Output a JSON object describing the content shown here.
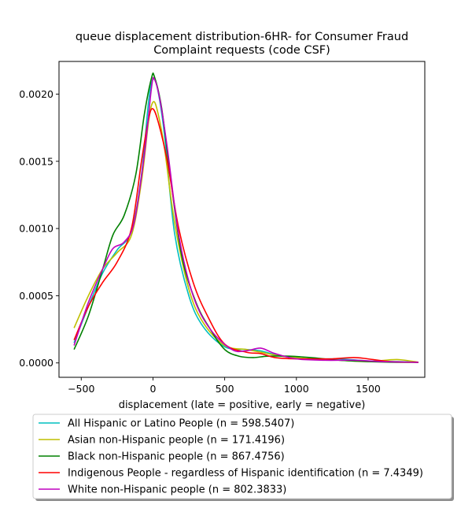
{
  "chart_data": {
    "type": "line",
    "title": "queue displacement distribution-6HR-  for Consumer Fraud\nComplaint  requests (code CSF)",
    "xlabel": "displacement (late = positive, early = negative)",
    "ylabel": "",
    "xlim": [
      -655,
      1895
    ],
    "ylim": [
      -0.000107,
      0.002243
    ],
    "x_ticks": [
      -500,
      0,
      500,
      1000,
      1500
    ],
    "x_tick_labels": [
      "−500",
      "0",
      "500",
      "1000",
      "1500"
    ],
    "y_ticks": [
      0.0,
      0.0005,
      0.001,
      0.0015,
      0.002
    ],
    "y_tick_labels": [
      "0.0000",
      "0.0005",
      "0.0010",
      "0.0015",
      "0.0020"
    ],
    "grid": false,
    "legend_placement": "below",
    "series": [
      {
        "name": "All Hispanic or Latino People (n = 598.5407)",
        "color": "#00bfbf",
        "points": [
          [
            -550,
            0.00015
          ],
          [
            -450,
            0.00042
          ],
          [
            -350,
            0.00067
          ],
          [
            -250,
            0.00084
          ],
          [
            -150,
            0.00098
          ],
          [
            -80,
            0.0014
          ],
          [
            -30,
            0.00195
          ],
          [
            0,
            0.00211
          ],
          [
            30,
            0.00205
          ],
          [
            80,
            0.0017
          ],
          [
            150,
            0.00097
          ],
          [
            250,
            0.0005
          ],
          [
            350,
            0.00027
          ],
          [
            500,
            0.00012
          ],
          [
            650,
            0.0001
          ],
          [
            750,
            9e-05
          ],
          [
            900,
            5e-05
          ],
          [
            1100,
            3e-05
          ],
          [
            1300,
            3e-05
          ],
          [
            1500,
            1.5e-05
          ],
          [
            1700,
            1e-05
          ],
          [
            1850,
            5e-06
          ]
        ]
      },
      {
        "name": "Asian non-Hispanic people (n = 171.4196)",
        "color": "#bfbf00",
        "points": [
          [
            -550,
            0.00026
          ],
          [
            -450,
            0.0005
          ],
          [
            -350,
            0.0007
          ],
          [
            -250,
            0.00082
          ],
          [
            -150,
            0.00095
          ],
          [
            -80,
            0.00135
          ],
          [
            -30,
            0.0018
          ],
          [
            0,
            0.00194
          ],
          [
            30,
            0.00188
          ],
          [
            80,
            0.0016
          ],
          [
            150,
            0.00105
          ],
          [
            250,
            0.00055
          ],
          [
            350,
            0.0003
          ],
          [
            500,
            0.00013
          ],
          [
            650,
            0.0001
          ],
          [
            750,
            8e-05
          ],
          [
            900,
            5e-05
          ],
          [
            1100,
            3e-05
          ],
          [
            1300,
            2e-05
          ],
          [
            1500,
            1e-05
          ],
          [
            1700,
            2.5e-05
          ],
          [
            1850,
            5e-06
          ]
        ]
      },
      {
        "name": "Black non-Hispanic people (n = 867.4756)",
        "color": "#008000",
        "points": [
          [
            -550,
            0.0001
          ],
          [
            -450,
            0.00035
          ],
          [
            -350,
            0.0007
          ],
          [
            -280,
            0.00095
          ],
          [
            -200,
            0.0011
          ],
          [
            -120,
            0.0014
          ],
          [
            -60,
            0.00185
          ],
          [
            -10,
            0.00212
          ],
          [
            10,
            0.00213
          ],
          [
            60,
            0.0019
          ],
          [
            120,
            0.0014
          ],
          [
            200,
            0.0008
          ],
          [
            300,
            0.00045
          ],
          [
            400,
            0.00025
          ],
          [
            500,
            0.0001
          ],
          [
            600,
            5e-05
          ],
          [
            700,
            4e-05
          ],
          [
            800,
            5e-05
          ],
          [
            950,
            5e-05
          ],
          [
            1100,
            4e-05
          ],
          [
            1300,
            2e-05
          ],
          [
            1500,
            1e-05
          ],
          [
            1700,
            5e-06
          ],
          [
            1850,
            5e-06
          ]
        ]
      },
      {
        "name": "Indigenous People - regardless of Hispanic identification (n = 7.4349)",
        "color": "#ff0000",
        "points": [
          [
            -550,
            0.00017
          ],
          [
            -450,
            0.00042
          ],
          [
            -350,
            0.0006
          ],
          [
            -250,
            0.00075
          ],
          [
            -150,
            0.001
          ],
          [
            -80,
            0.0015
          ],
          [
            -30,
            0.00182
          ],
          [
            0,
            0.00189
          ],
          [
            40,
            0.00178
          ],
          [
            100,
            0.0015
          ],
          [
            180,
            0.001
          ],
          [
            280,
            0.0006
          ],
          [
            380,
            0.00035
          ],
          [
            500,
            0.00014
          ],
          [
            650,
            8e-05
          ],
          [
            750,
            7e-05
          ],
          [
            850,
            4e-05
          ],
          [
            1000,
            3e-05
          ],
          [
            1150,
            3e-05
          ],
          [
            1250,
            3e-05
          ],
          [
            1400,
            4e-05
          ],
          [
            1500,
            3e-05
          ],
          [
            1650,
            1e-05
          ],
          [
            1850,
            5e-06
          ]
        ]
      },
      {
        "name": "White non-Hispanic people (n = 802.3833)",
        "color": "#bf00bf",
        "points": [
          [
            -550,
            0.00013
          ],
          [
            -450,
            0.00045
          ],
          [
            -350,
            0.0007
          ],
          [
            -280,
            0.00085
          ],
          [
            -200,
            0.0009
          ],
          [
            -130,
            0.00105
          ],
          [
            -60,
            0.00155
          ],
          [
            -10,
            0.00205
          ],
          [
            10,
            0.00211
          ],
          [
            50,
            0.00195
          ],
          [
            100,
            0.0016
          ],
          [
            180,
            0.00095
          ],
          [
            280,
            0.0005
          ],
          [
            400,
            0.00025
          ],
          [
            550,
            0.0001
          ],
          [
            650,
            9e-05
          ],
          [
            750,
            0.00011
          ],
          [
            850,
            7e-05
          ],
          [
            1000,
            3e-05
          ],
          [
            1200,
            2e-05
          ],
          [
            1400,
            2e-05
          ],
          [
            1600,
            1e-05
          ],
          [
            1850,
            5e-06
          ]
        ]
      }
    ]
  }
}
